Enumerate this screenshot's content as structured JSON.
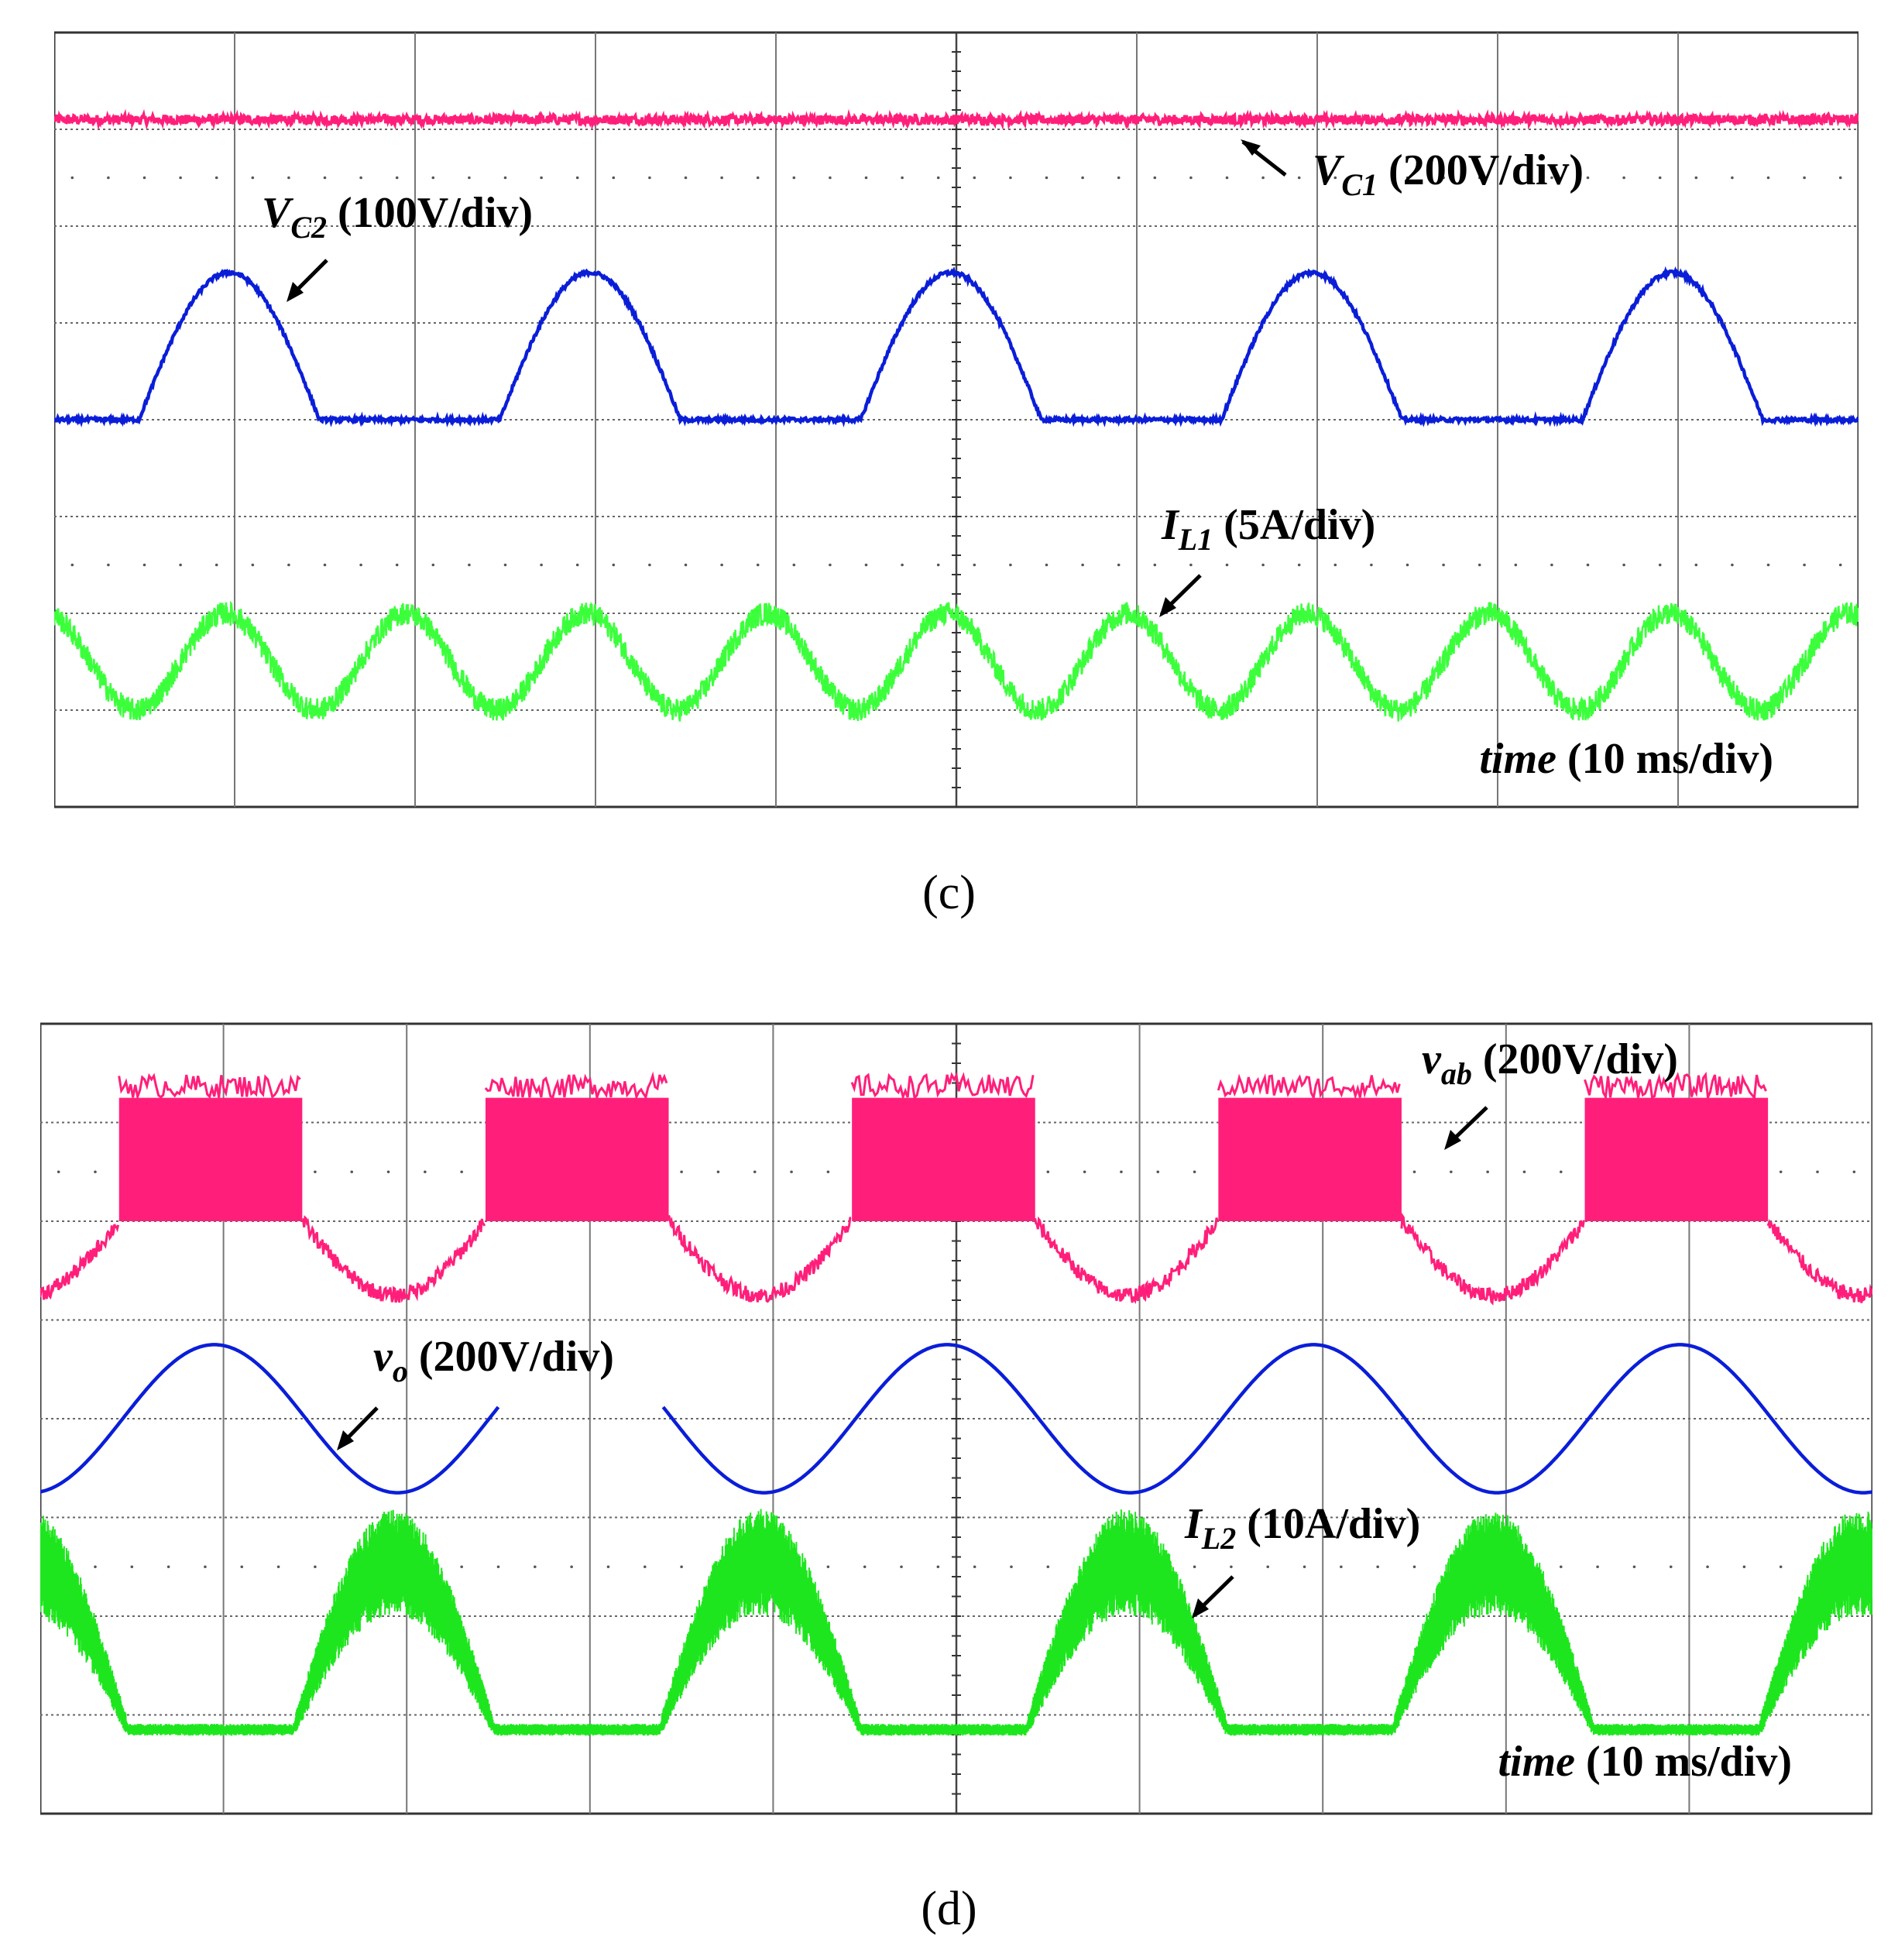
{
  "panels": [
    {
      "label": "(c)",
      "chart_data": {
        "type": "line",
        "title": "",
        "grid": "10x8 divisions",
        "x": {
          "divisions": 10,
          "per_div_ms": 10,
          "range_ms": [
            0,
            100
          ]
        },
        "time_label": {
          "var": "time",
          "scale": "(10 ms/div)"
        },
        "channel_markers": [
          {
            "id": "C2",
            "color": "#ff1f7a",
            "ref_div": 2
          },
          {
            "id": "C3",
            "color": "#1ca9ff",
            "ref_div": 4
          },
          {
            "id": "C4",
            "color": "#2fa842",
            "ref_div": 7
          }
        ],
        "series": [
          {
            "name": "VC1",
            "annotation": {
              "main": "V",
              "sub": "C1",
              "scale": "(200V/div)"
            },
            "color": "#ff1f7a",
            "volts_per_div": 200,
            "ref_div": 2,
            "level_div": 1.1,
            "noise_div": 0.05
          },
          {
            "name": "VC2",
            "annotation": {
              "main": "V",
              "sub": "C2",
              "scale": "(100V/div)"
            },
            "color": "#0a1ed8",
            "volts_per_div": 100,
            "ref_div": 4,
            "peak_div": 1.52,
            "period_ms": 20,
            "on_start_ms": 4.7,
            "on_width_ms": 10,
            "noise_div": 0.02
          },
          {
            "name": "IL1",
            "annotation": {
              "main": "I",
              "sub": "L1",
              "scale": "(5A/div)"
            },
            "color": "#3cff3c",
            "amps_per_div": 5,
            "ref_div": 7,
            "offset_div": 0.5,
            "amp_div": 0.5,
            "period_ms": 20,
            "peak_ms": 9.5,
            "noise_div": 0.12
          }
        ]
      }
    },
    {
      "label": "(d)",
      "chart_data": {
        "type": "line",
        "title": "",
        "grid": "10x8 divisions",
        "x": {
          "divisions": 10,
          "per_div_ms": 10,
          "range_ms": [
            0,
            100
          ]
        },
        "time_label": {
          "var": "time",
          "scale": "(10 ms/div)"
        },
        "channel_markers": [
          {
            "id": "C2",
            "color": "#ff1f7a",
            "ref_div": 2
          },
          {
            "id": "C3",
            "color": "#1ca9ff",
            "ref_div": 4
          },
          {
            "id": "C4",
            "color": "#2fa842",
            "ref_div": 7
          }
        ],
        "series": [
          {
            "name": "vab",
            "annotation": {
              "main": "v",
              "sub": "ab",
              "scale": "(200V/div)"
            },
            "color": "#ff1f7a",
            "volts_per_div": 200,
            "ref_div": 2,
            "pulse_low_div": 0.0,
            "pulse_high_div": 1.25,
            "valley_div": -0.75,
            "period_ms": 20,
            "pulse_start_ms": 4.3,
            "pulse_width_ms": 10,
            "noise_div": 0.08
          },
          {
            "name": "vo",
            "annotation": {
              "main": "v",
              "sub": "o",
              "scale": "(200V/div)"
            },
            "color": "#0a1ed8",
            "volts_per_div": 200,
            "ref_div": 4,
            "amp_div": 0.75,
            "period_ms": 20,
            "peak_ms": 9.5,
            "gap_ms": [
              25.0,
              34.0
            ]
          },
          {
            "name": "IL2",
            "annotation": {
              "main": "I",
              "sub": "L2",
              "scale": "(10A/div)"
            },
            "color": "#1ee61e",
            "amps_per_div": 10,
            "ref_div": 7,
            "base_div": -0.15,
            "peak_div": 1.7,
            "period_ms": 20,
            "peak_ms": 19.3,
            "hump_width_ms": 11,
            "ripple_div": 0.45
          }
        ]
      }
    }
  ]
}
